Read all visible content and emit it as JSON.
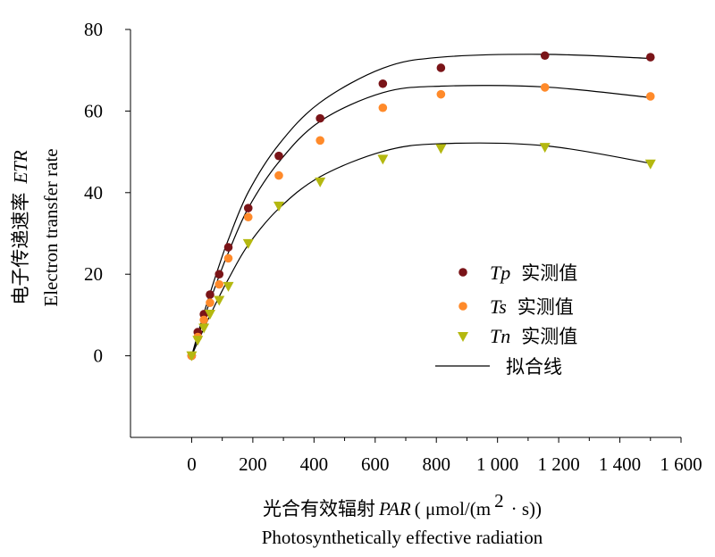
{
  "chart_data": {
    "type": "scatter",
    "x_axis": {
      "label_cn": "光合有效辐射",
      "label_var": "PAR",
      "label_unit": "( μmol/(m",
      "label_sup": "2",
      "label_unit_tail": "· s))",
      "label_en": "Photosynthetically effective radiation",
      "range": [
        -200,
        1600
      ],
      "ticks": [
        "0",
        "200",
        "400",
        "600",
        "800",
        "1 000",
        "1 200",
        "1 400",
        "1 600"
      ],
      "tick_values": [
        0,
        200,
        400,
        600,
        800,
        1000,
        1200,
        1400,
        1600
      ]
    },
    "y_axis": {
      "label_cn": "电子传递速率",
      "label_var": "ETR",
      "label_en": "Electron transfer rate",
      "range": [
        -20,
        80
      ],
      "ticks": [
        "0",
        "20",
        "40",
        "60",
        "80"
      ],
      "tick_values": [
        0,
        20,
        40,
        60,
        80
      ]
    },
    "series": [
      {
        "name": "Tp",
        "name_cn": "实测值",
        "marker": "circle",
        "color": "#7a1418",
        "x": [
          0,
          20,
          40,
          60,
          90,
          120,
          185,
          285,
          420,
          625,
          815,
          1155,
          1500
        ],
        "y": [
          0,
          5.8,
          10.2,
          15,
          20,
          26.6,
          36.2,
          49,
          58.2,
          66.7,
          70.6,
          73.6,
          73.2
        ],
        "fit_y": [
          0,
          5.3,
          10.4,
          15.3,
          22.2,
          28.5,
          40.1,
          51.8,
          62.1,
          70.5,
          73.2,
          73.9,
          72.9
        ]
      },
      {
        "name": "Ts",
        "name_cn": "实测值",
        "marker": "circle",
        "color": "#ff8a2a",
        "x": [
          0,
          20,
          40,
          60,
          90,
          120,
          185,
          285,
          420,
          625,
          815,
          1155,
          1500
        ],
        "y": [
          0,
          4.6,
          8.8,
          13,
          17.5,
          23.9,
          34,
          44.2,
          52.8,
          60.8,
          64.1,
          65.8,
          63.6
        ],
        "fit_y": [
          0,
          4.6,
          9.1,
          13.4,
          19.6,
          25.3,
          36.2,
          47.5,
          57.5,
          64.5,
          66.1,
          65.9,
          63.3
        ]
      },
      {
        "name": "Tn",
        "name_cn": "实测值",
        "marker": "triangle-down",
        "color": "#b4b810",
        "x": [
          0,
          20,
          40,
          60,
          90,
          120,
          185,
          285,
          420,
          625,
          815,
          1155,
          1500
        ],
        "y": [
          0,
          3.8,
          6.8,
          10.2,
          13.6,
          17,
          27.5,
          36.7,
          42.6,
          48.2,
          50.8,
          51.1,
          47
        ],
        "fit_y": [
          0,
          3.4,
          6.7,
          9.9,
          14.5,
          18.8,
          27.2,
          36.1,
          43.9,
          50.1,
          52.0,
          51.5,
          47.2
        ]
      }
    ],
    "fit_legend_label": "拟合线",
    "grid": false,
    "legend_position": "right"
  }
}
